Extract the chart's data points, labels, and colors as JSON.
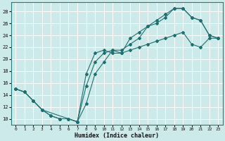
{
  "xlabel": "Humidex (Indice chaleur)",
  "xlim": [
    -0.5,
    23.5
  ],
  "ylim": [
    9,
    29.5
  ],
  "yticks": [
    10,
    12,
    14,
    16,
    18,
    20,
    22,
    24,
    26,
    28
  ],
  "xticks": [
    0,
    1,
    2,
    3,
    4,
    5,
    6,
    7,
    8,
    9,
    10,
    11,
    12,
    13,
    14,
    15,
    16,
    17,
    18,
    19,
    20,
    21,
    22,
    23
  ],
  "bg_color": "#cdeaea",
  "grid_color": "#b0d4d4",
  "line_color": "#1e7070",
  "series": [
    {
      "x": [
        0,
        1,
        2,
        3,
        4,
        5,
        6,
        7,
        8,
        9,
        10,
        11,
        12,
        13,
        14,
        15,
        16,
        17,
        18,
        19,
        20,
        21,
        22,
        23
      ],
      "y": [
        15.0,
        14.5,
        13.0,
        11.5,
        10.5,
        10.0,
        10.0,
        9.5,
        12.5,
        17.5,
        19.5,
        21.5,
        21.0,
        23.5,
        24.5,
        25.5,
        26.0,
        27.0,
        28.5,
        28.5,
        27.0,
        26.5,
        24.0,
        23.5
      ]
    },
    {
      "x": [
        0,
        1,
        2,
        3,
        7,
        8,
        9,
        10,
        11,
        12,
        13,
        14,
        15,
        16,
        17,
        18,
        19,
        20,
        21,
        22,
        23
      ],
      "y": [
        15.0,
        14.5,
        13.0,
        11.5,
        9.5,
        17.5,
        21.0,
        21.5,
        21.0,
        21.0,
        21.5,
        22.0,
        22.5,
        23.0,
        23.5,
        24.0,
        24.5,
        22.5,
        22.0,
        23.5,
        23.5
      ]
    },
    {
      "x": [
        0,
        1,
        2,
        3,
        4,
        5,
        6,
        7,
        8,
        9,
        10,
        11,
        12,
        13,
        14,
        15,
        16,
        17,
        18,
        19,
        20,
        21,
        22,
        23
      ],
      "y": [
        15.0,
        14.5,
        13.0,
        11.5,
        10.5,
        10.0,
        10.0,
        9.5,
        15.5,
        19.5,
        21.0,
        21.5,
        21.5,
        22.5,
        23.5,
        25.5,
        26.5,
        27.5,
        28.5,
        28.5,
        27.0,
        26.5,
        24.0,
        23.5
      ]
    }
  ]
}
